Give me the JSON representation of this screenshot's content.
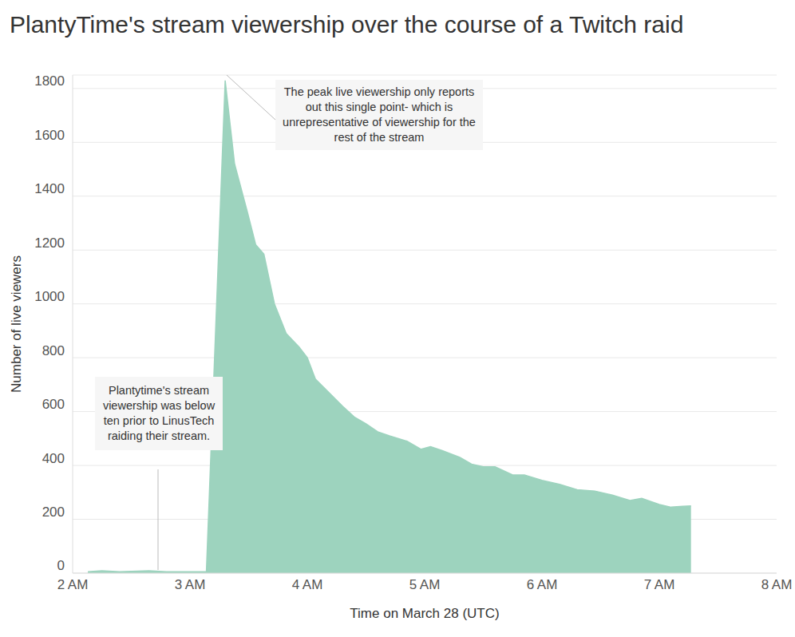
{
  "chart_data": {
    "type": "area",
    "title": "PlantyTime's stream viewership over the course of a Twitch raid",
    "x_label": "Time on March 28 (UTC)",
    "y_label": "Number of live viewers",
    "x": [
      2.13,
      2.25,
      2.4,
      2.65,
      2.8,
      3.14,
      3.3,
      3.38,
      3.49,
      3.56,
      3.63,
      3.72,
      3.82,
      3.93,
      4.0,
      4.07,
      4.14,
      4.3,
      4.4,
      4.5,
      4.6,
      4.7,
      4.85,
      4.97,
      5.05,
      5.15,
      5.3,
      5.4,
      5.5,
      5.6,
      5.75,
      5.85,
      6.0,
      6.15,
      6.3,
      6.45,
      6.6,
      6.75,
      6.85,
      7.0,
      7.1,
      7.2,
      7.27
    ],
    "values": [
      5,
      9,
      5,
      9,
      5,
      5,
      1830,
      1520,
      1340,
      1220,
      1185,
      1000,
      890,
      840,
      800,
      720,
      690,
      620,
      580,
      555,
      525,
      510,
      490,
      460,
      470,
      455,
      430,
      405,
      395,
      395,
      365,
      365,
      345,
      330,
      310,
      305,
      290,
      270,
      278,
      255,
      245,
      248,
      250
    ],
    "color": "#9dd3be",
    "xlim": [
      2,
      8
    ],
    "xticks": [
      {
        "value": 2,
        "label": "2 AM"
      },
      {
        "value": 3,
        "label": "3 AM"
      },
      {
        "value": 4,
        "label": "4 AM"
      },
      {
        "value": 5,
        "label": "5 AM"
      },
      {
        "value": 6,
        "label": "6 AM"
      },
      {
        "value": 7,
        "label": "7 AM"
      },
      {
        "value": 8,
        "label": "8 AM"
      }
    ],
    "ylim": [
      0,
      1850
    ],
    "yticks": [
      0,
      200,
      400,
      600,
      800,
      1000,
      1200,
      1400,
      1600,
      1800
    ],
    "grid": true,
    "annotations": [
      {
        "text": "The peak live viewership only reports out this single point- which is unrepresentative of viewership for the rest of the stream"
      },
      {
        "text": "Plantytime's stream viewership was below ten prior to LinusTech raiding their stream."
      }
    ]
  }
}
